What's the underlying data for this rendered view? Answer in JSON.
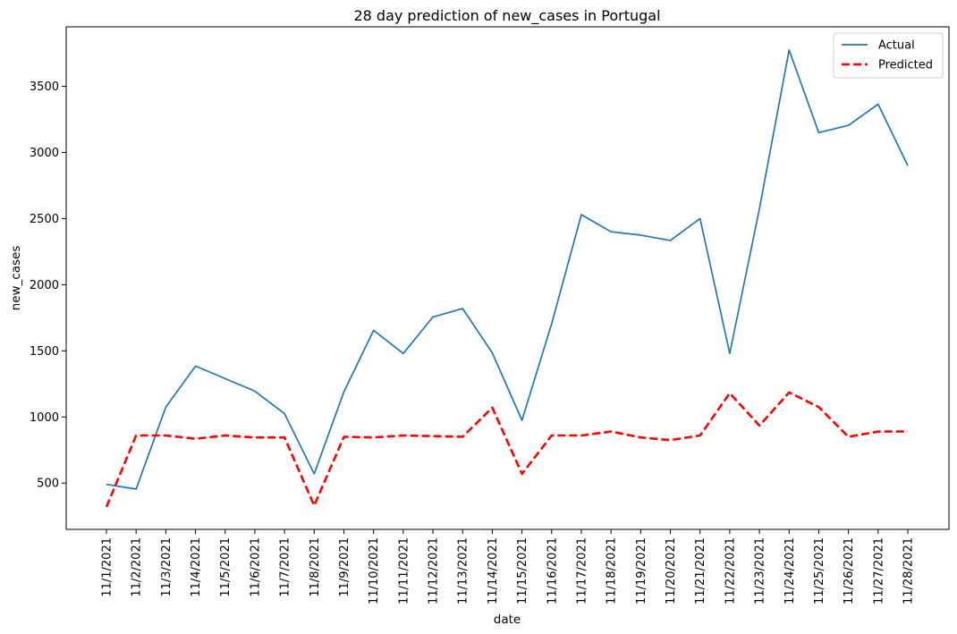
{
  "chart_data": {
    "type": "line",
    "title": "28 day prediction of new_cases in Portugal",
    "xlabel": "date",
    "ylabel": "new_cases",
    "x": [
      "11/1/2021",
      "11/2/2021",
      "11/3/2021",
      "11/4/2021",
      "11/5/2021",
      "11/6/2021",
      "11/7/2021",
      "11/8/2021",
      "11/9/2021",
      "11/10/2021",
      "11/11/2021",
      "11/12/2021",
      "11/13/2021",
      "11/14/2021",
      "11/15/2021",
      "11/16/2021",
      "11/17/2021",
      "11/18/2021",
      "11/19/2021",
      "11/20/2021",
      "11/21/2021",
      "11/22/2021",
      "11/23/2021",
      "11/24/2021",
      "11/25/2021",
      "11/26/2021",
      "11/27/2021",
      "11/28/2021"
    ],
    "ylim": [
      150,
      3950
    ],
    "yticks": [
      500,
      1000,
      1500,
      2000,
      2500,
      3000,
      3500
    ],
    "grid": false,
    "legend_position": "top-right",
    "series": [
      {
        "name": "Actual",
        "color": "#1f77b4",
        "style": "solid",
        "values": [
          490,
          455,
          1075,
          1385,
          1290,
          1195,
          1025,
          570,
          1190,
          1655,
          1480,
          1755,
          1820,
          1485,
          975,
          1705,
          2530,
          2400,
          2375,
          2335,
          2500,
          1480,
          2575,
          3775,
          3150,
          3205,
          3365,
          2900
        ]
      },
      {
        "name": "Predicted",
        "color": "#ff0000",
        "style": "dashed",
        "values": [
          320,
          860,
          860,
          835,
          860,
          845,
          845,
          330,
          850,
          845,
          860,
          855,
          850,
          1070,
          570,
          860,
          860,
          890,
          845,
          825,
          860,
          1180,
          935,
          1185,
          1075,
          850,
          890,
          890
        ]
      }
    ]
  }
}
